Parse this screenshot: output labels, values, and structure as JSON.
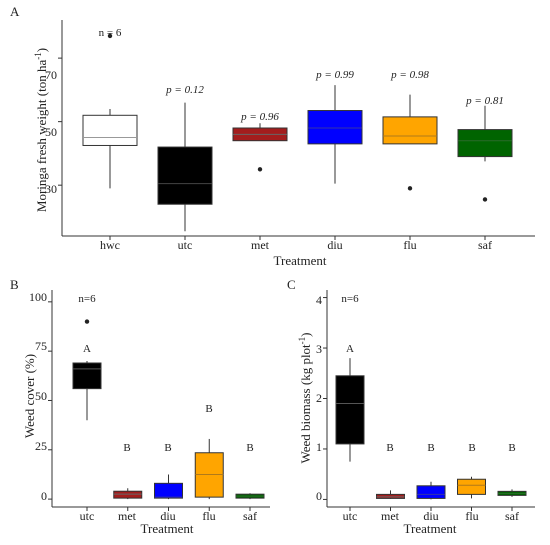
{
  "panels": [
    {
      "letter": "A",
      "ylabel": "Moringa fresh weight  (ton ha",
      "ylabel_sup": "-1",
      "ylabel_end": ")",
      "xlabel": "Treatment",
      "yticks": [
        "30",
        "50",
        "70"
      ],
      "xticks": [
        "hwc",
        "utc",
        "met",
        "diu",
        "flu",
        "saf"
      ],
      "annotations": [
        "n = 6",
        "p = 0.12",
        "p = 0.96",
        "p = 0.99",
        "p = 0.98",
        "p = 0.81"
      ]
    },
    {
      "letter": "B",
      "ylabel": "Weed cover (%)",
      "xlabel": "Treatment",
      "yticks": [
        "0",
        "25",
        "50",
        "75",
        "100"
      ],
      "xticks": [
        "utc",
        "met",
        "diu",
        "flu",
        "saf"
      ],
      "annotations": [
        "n=6",
        "A",
        "B",
        "B",
        "B",
        "B"
      ]
    },
    {
      "letter": "C",
      "ylabel": "Weed biomass  (kg plot",
      "ylabel_sup": "-1",
      "ylabel_end": ")",
      "xlabel": "Treatment",
      "yticks": [
        "0",
        "1",
        "2",
        "3",
        "4"
      ],
      "xticks": [
        "utc",
        "met",
        "diu",
        "flu",
        "saf"
      ],
      "annotations": [
        "n=6",
        "A",
        "B",
        "B",
        "B",
        "B"
      ]
    }
  ],
  "chart_data": [
    {
      "type": "box",
      "title": "",
      "xlabel": "Treatment",
      "ylabel": "Moringa fresh weight  (ton ha-1)",
      "ylim": [
        14,
        82
      ],
      "categories": [
        "hwc",
        "utc",
        "met",
        "diu",
        "flu",
        "saf"
      ],
      "boxes": [
        {
          "min": 29,
          "q1": 42.5,
          "median": 45,
          "q3": 52,
          "max": 54,
          "outliers": [
            77
          ],
          "color": "#ffffff",
          "median_color": "#999999"
        },
        {
          "min": 15.5,
          "q1": 24,
          "median": 30.5,
          "q3": 42,
          "max": 56,
          "outliers": [],
          "color": "#000000",
          "median_color": "#444444"
        },
        {
          "min": 44,
          "q1": 44,
          "median": 46,
          "q3": 48,
          "max": 49.5,
          "outliers": [
            35
          ],
          "color": "#a31d1d",
          "median_color": "#666666"
        },
        {
          "min": 30.5,
          "q1": 43,
          "median": 48,
          "q3": 53.5,
          "max": 61.5,
          "outliers": [],
          "color": "#0000ff",
          "median_color": "#3333aa"
        },
        {
          "min": 43,
          "q1": 43,
          "median": 45.5,
          "q3": 51.5,
          "max": 58.5,
          "outliers": [
            29
          ],
          "color": "#ffa500",
          "median_color": "#b07a1a"
        },
        {
          "min": 37.5,
          "q1": 39,
          "median": 44,
          "q3": 47.5,
          "max": 55,
          "outliers": [
            25.5
          ],
          "color": "#006400",
          "median_color": "#2a6a2a"
        }
      ]
    },
    {
      "type": "box",
      "title": "",
      "xlabel": "Treatment",
      "ylabel": "Weed cover (%)",
      "ylim": [
        -4,
        106
      ],
      "categories": [
        "utc",
        "met",
        "diu",
        "flu",
        "saf"
      ],
      "boxes": [
        {
          "min": 40,
          "q1": 56,
          "median": 66,
          "q3": 69,
          "max": 70,
          "outliers": [
            90
          ],
          "color": "#000000",
          "median_color": "#555555"
        },
        {
          "min": 0,
          "q1": 0.5,
          "median": 2.5,
          "q3": 4,
          "max": 5.5,
          "outliers": [],
          "color": "#a31d1d",
          "median_color": "#666666"
        },
        {
          "min": 0,
          "q1": 0.5,
          "median": 1,
          "q3": 8,
          "max": 12.5,
          "outliers": [],
          "color": "#0000ff",
          "median_color": "#3333aa"
        },
        {
          "min": 0,
          "q1": 1,
          "median": 12.5,
          "q3": 23.5,
          "max": 30.5,
          "outliers": [],
          "color": "#ffa500",
          "median_color": "#b07a1a"
        },
        {
          "min": 0,
          "q1": 0.5,
          "median": 1.5,
          "q3": 2.5,
          "max": 3,
          "outliers": [],
          "color": "#006400",
          "median_color": "#2a6a2a"
        }
      ]
    },
    {
      "type": "box",
      "title": "",
      "xlabel": "Treatment",
      "ylabel": "Weed biomass  (kg plot-1)",
      "ylim": [
        -0.15,
        4.15
      ],
      "categories": [
        "utc",
        "met",
        "diu",
        "flu",
        "saf"
      ],
      "boxes": [
        {
          "min": 0.75,
          "q1": 1.1,
          "median": 1.9,
          "q3": 2.45,
          "max": 2.8,
          "outliers": [],
          "color": "#000000",
          "median_color": "#555555"
        },
        {
          "min": 0.01,
          "q1": 0.02,
          "median": 0.05,
          "q3": 0.1,
          "max": 0.18,
          "outliers": [],
          "color": "#a31d1d",
          "median_color": "#666666"
        },
        {
          "min": 0,
          "q1": 0.02,
          "median": 0.1,
          "q3": 0.27,
          "max": 0.35,
          "outliers": [],
          "color": "#0000ff",
          "median_color": "#3333aa"
        },
        {
          "min": 0.02,
          "q1": 0.1,
          "median": 0.28,
          "q3": 0.4,
          "max": 0.45,
          "outliers": [],
          "color": "#ffa500",
          "median_color": "#b07a1a"
        },
        {
          "min": 0.05,
          "q1": 0.08,
          "median": 0.12,
          "q3": 0.16,
          "max": 0.2,
          "outliers": [],
          "color": "#006400",
          "median_color": "#2a6a2a"
        }
      ]
    }
  ]
}
